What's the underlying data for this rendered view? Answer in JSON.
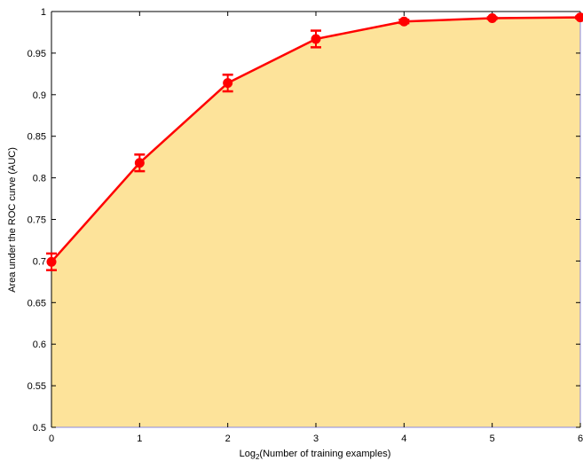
{
  "chart_data": {
    "type": "area",
    "title": "",
    "xlabel_parts": {
      "prefix": "Log",
      "subscript": "2",
      "suffix": "(Number of training examples)"
    },
    "ylabel": "Area under the ROC curve (AUC)",
    "xlim": [
      0,
      6
    ],
    "ylim": [
      0.5,
      1.0
    ],
    "xticks": [
      0,
      1,
      2,
      3,
      4,
      5,
      6
    ],
    "xtick_labels": [
      "0",
      "1",
      "2",
      "3",
      "4",
      "5",
      "6"
    ],
    "yticks": [
      0.5,
      0.55,
      0.6,
      0.65,
      0.7,
      0.75,
      0.8,
      0.85,
      0.9,
      0.95,
      1.0
    ],
    "ytick_labels": [
      "0.5",
      "0.55",
      "0.6",
      "0.65",
      "0.7",
      "0.75",
      "0.8",
      "0.85",
      "0.9",
      "0.95",
      "1"
    ],
    "grid": false,
    "series": [
      {
        "x": [
          0,
          1,
          2,
          3,
          4,
          5,
          6
        ],
        "y": [
          0.699,
          0.818,
          0.914,
          0.967,
          0.988,
          0.992,
          0.993
        ],
        "error": [
          0.01,
          0.01,
          0.01,
          0.01,
          0.002,
          0.001,
          0.001
        ],
        "line_color": "#ff0000",
        "fill_color": "#fde39a"
      }
    ],
    "colors": {
      "axis": "#000000",
      "frame_right_bottom": "#8a8ae0"
    }
  }
}
